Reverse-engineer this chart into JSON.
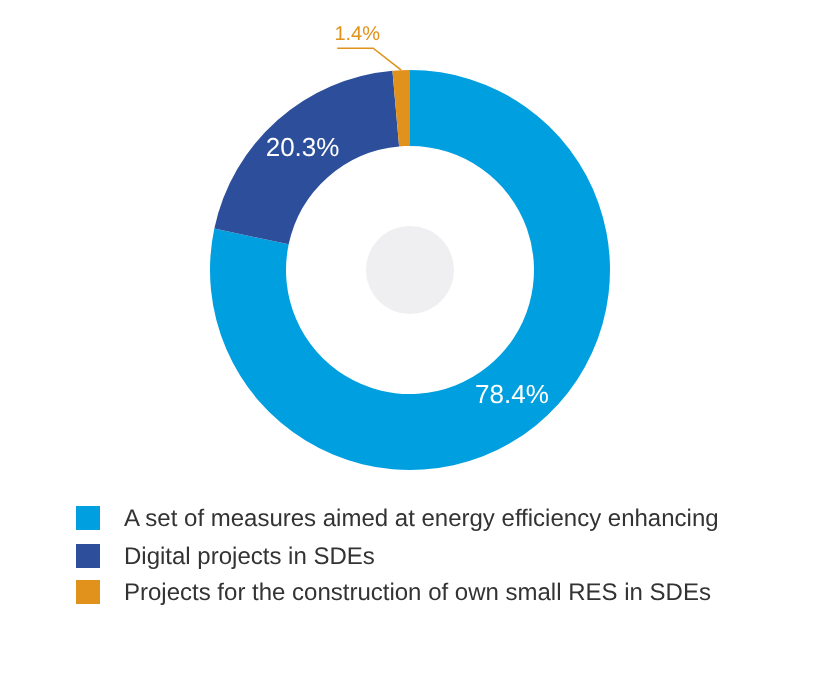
{
  "chart_data": {
    "type": "donut",
    "categories": [
      "A set of measures aimed at energy efficiency enhancing",
      "Digital projects in SDEs",
      "Projects for the construction of own small RES in SDEs"
    ],
    "values": [
      78.4,
      20.3,
      1.4
    ],
    "colors": [
      "#009fe0",
      "#2d4f9b",
      "#e0921c"
    ],
    "value_labels": [
      "78.4%",
      "20.3%",
      "1.4%"
    ],
    "legend": "bottom"
  }
}
